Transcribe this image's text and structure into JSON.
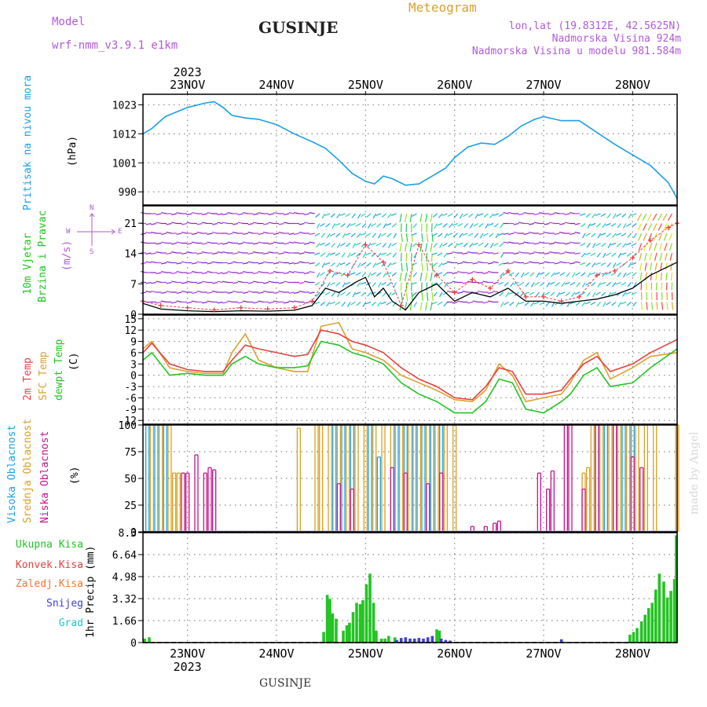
{
  "header": {
    "model_label": "Model",
    "model_name": "wrf-nmm_v3.9.1 e1km",
    "station": "GUSINJE",
    "product": "Meteogram",
    "coords": "lon,lat (19.8312E, 42.5625N)",
    "altitude": "Nadmorska Visina 924m",
    "model_altitude": "Nadmorska Visina u modelu 981.584m",
    "footer_station": "GUSINJE",
    "watermark": "made by Angel"
  },
  "colors": {
    "purple": "#b05ad8",
    "pressure": "#1aa0e8",
    "green": "#22c422",
    "t2m": "#e84040",
    "sfc": "#dca030",
    "low": "#c8148c",
    "mid": "#dca020",
    "high": "#1aa0e8",
    "orange": "#f07830",
    "blue": "#4040d0",
    "cyan": "#20c8c8"
  },
  "time_axis": {
    "year": "2023",
    "days": [
      "23NOV",
      "24NOV",
      "25NOV",
      "26NOV",
      "27NOV",
      "28NOV"
    ]
  },
  "panel_labels": {
    "pressure": {
      "name": "Pritisak na nivou mora",
      "unit": "(hPa)"
    },
    "wind": {
      "line1": "10m Vjetar",
      "line2": "Brzina i Pravac",
      "unit": "(m/s)",
      "compass_n": "N",
      "compass_s": "S",
      "compass_e": "E",
      "compass_w": "W"
    },
    "temp": {
      "t2m": "2m Temp",
      "sfc": "SFC Temp",
      "dewpt": "dewpt Temp",
      "unit": "(C)"
    },
    "cloud": {
      "high": "Visoka Oblacnost",
      "mid": "Srednja Oblacnost",
      "low": "Niska Oblacnost",
      "unit": "(%)"
    },
    "precip": {
      "unit": "1hr Precip (mm)",
      "legend": [
        "Ukupna Kisa",
        "Konvek.Kisa",
        "Zaledj.Kisa",
        "Snijeg",
        "Grad"
      ]
    }
  },
  "chart_data": [
    {
      "type": "line",
      "panel": "pressure",
      "title": "Pritisak na nivou mora",
      "ylabel": "(hPa)",
      "ylim": [
        985,
        1027
      ],
      "yticks": [
        990,
        1001,
        1012,
        1023
      ],
      "x_unit": "day of Nov 2023",
      "series": [
        {
          "name": "Pritisak na nivou mora",
          "x": [
            22.5,
            22.6,
            22.75,
            23.0,
            23.2,
            23.3,
            23.4,
            23.5,
            23.65,
            23.8,
            24.0,
            24.2,
            24.4,
            24.55,
            24.7,
            24.85,
            25.0,
            25.1,
            25.2,
            25.3,
            25.45,
            25.6,
            25.75,
            25.9,
            26.0,
            26.15,
            26.3,
            26.45,
            26.6,
            26.75,
            26.9,
            27.0,
            27.2,
            27.4,
            27.6,
            27.8,
            28.0,
            28.2,
            28.4,
            28.5
          ],
          "values": [
            1012,
            1014,
            1018.5,
            1022,
            1023.7,
            1024.2,
            1022,
            1019,
            1018,
            1017.5,
            1015.5,
            1012,
            1009,
            1006.5,
            1002,
            997,
            994,
            993,
            996,
            995,
            992.5,
            993,
            996,
            999,
            1003,
            1007,
            1008.5,
            1008,
            1011,
            1015,
            1017.5,
            1018.5,
            1017,
            1017,
            1012.5,
            1008,
            1004,
            1000,
            993.5,
            987.5
          ]
        }
      ]
    },
    {
      "type": "line",
      "panel": "wind",
      "title": "10m Vjetar Brzina i Pravac",
      "ylabel": "(m/s)",
      "ylim": [
        0,
        25
      ],
      "yticks": [
        0,
        7,
        14,
        21
      ],
      "series": [
        {
          "name": "10m Vjetar",
          "x": [
            22.5,
            22.7,
            23.0,
            23.3,
            23.6,
            23.9,
            24.2,
            24.4,
            24.55,
            24.7,
            24.9,
            25.0,
            25.1,
            25.2,
            25.3,
            25.45,
            25.6,
            25.8,
            26.0,
            26.2,
            26.4,
            26.6,
            26.8,
            27.0,
            27.2,
            27.4,
            27.6,
            27.8,
            28.0,
            28.2,
            28.4,
            28.5
          ],
          "values": [
            2.5,
            1.2,
            0.8,
            0.6,
            0.8,
            0.7,
            0.9,
            2,
            6,
            5,
            7.5,
            8.5,
            4,
            6,
            3,
            1,
            5,
            7,
            3,
            5,
            4,
            6,
            3,
            3,
            2.5,
            3,
            3.5,
            4.5,
            6,
            9,
            11,
            12
          ]
        },
        {
          "name": "gust",
          "x": [
            22.5,
            22.7,
            23.0,
            23.3,
            23.6,
            23.9,
            24.2,
            24.4,
            24.6,
            24.8,
            25.0,
            25.2,
            25.4,
            25.6,
            25.8,
            26.0,
            26.2,
            26.4,
            26.6,
            26.8,
            27.0,
            27.2,
            27.4,
            27.6,
            27.8,
            28.0,
            28.2,
            28.4,
            28.5
          ],
          "values": [
            3,
            2,
            1.5,
            1,
            1.5,
            1.2,
            1.5,
            3,
            10,
            9,
            16,
            12,
            2,
            16,
            9,
            5,
            8,
            6,
            10,
            4,
            4,
            3,
            4,
            9,
            10,
            13,
            17,
            20,
            21
          ]
        }
      ]
    },
    {
      "type": "line",
      "panel": "temperature",
      "title": "2m Temp / SFC Temp / dewpt Temp",
      "ylabel": "(C)",
      "ylim": [
        -13,
        16
      ],
      "yticks": [
        -12,
        -9,
        -6,
        -3,
        0,
        3,
        6,
        9,
        12,
        15
      ],
      "series": [
        {
          "name": "2m Temp",
          "x": [
            22.5,
            22.6,
            22.8,
            23.0,
            23.2,
            23.4,
            23.5,
            23.65,
            23.8,
            24.0,
            24.2,
            24.35,
            24.5,
            24.7,
            24.85,
            25.0,
            25.2,
            25.4,
            25.6,
            25.8,
            26.0,
            26.2,
            26.35,
            26.5,
            26.65,
            26.8,
            27.0,
            27.2,
            27.3,
            27.45,
            27.6,
            27.75,
            28.0,
            28.2,
            28.5
          ],
          "values": [
            6,
            8.5,
            3,
            1.5,
            1,
            1,
            4,
            8,
            7,
            6,
            5,
            5.5,
            12,
            11,
            9,
            8,
            6,
            2,
            -1,
            -3,
            -6,
            -6.5,
            -3,
            2,
            1,
            -5,
            -5,
            -4,
            -1,
            3,
            5,
            1,
            3,
            6,
            9.5
          ]
        },
        {
          "name": "SFC Temp",
          "x": [
            22.5,
            22.6,
            22.8,
            23.0,
            23.2,
            23.4,
            23.5,
            23.65,
            23.8,
            24.0,
            24.2,
            24.35,
            24.5,
            24.7,
            24.85,
            25.0,
            25.2,
            25.4,
            25.6,
            25.8,
            26.0,
            26.2,
            26.35,
            26.5,
            26.65,
            26.8,
            27.0,
            27.2,
            27.3,
            27.45,
            27.6,
            27.75,
            28.0,
            28.2,
            28.5
          ],
          "values": [
            7,
            9,
            2,
            1,
            0.5,
            0.5,
            6,
            11,
            4,
            2,
            1,
            1,
            13,
            14,
            7,
            6,
            4,
            0,
            -2,
            -4,
            -6.5,
            -7,
            -4,
            3,
            0,
            -7,
            -6,
            -5,
            -2,
            4,
            6,
            -1,
            2,
            5,
            6
          ]
        },
        {
          "name": "dewpt Temp",
          "x": [
            22.5,
            22.6,
            22.8,
            23.0,
            23.2,
            23.4,
            23.5,
            23.65,
            23.8,
            24.0,
            24.2,
            24.35,
            24.5,
            24.7,
            24.85,
            25.0,
            25.2,
            25.4,
            25.6,
            25.8,
            26.0,
            26.2,
            26.35,
            26.5,
            26.65,
            26.8,
            27.0,
            27.2,
            27.3,
            27.45,
            27.6,
            27.75,
            28.0,
            28.2,
            28.5
          ],
          "values": [
            4,
            6,
            0,
            0.5,
            0,
            0,
            3,
            5,
            3,
            2,
            2,
            2.5,
            9,
            8,
            6,
            5,
            3,
            -2,
            -5,
            -7,
            -10,
            -10,
            -7,
            -1,
            -2,
            -9,
            -10,
            -7,
            -5,
            0,
            2,
            -3,
            -2,
            2,
            7
          ]
        }
      ]
    },
    {
      "type": "bar",
      "panel": "cloud",
      "title": "Visoka / Srednja / Niska Oblacnost",
      "ylabel": "(%)",
      "ylim": [
        0,
        100
      ],
      "yticks": [
        0,
        25,
        50,
        75,
        100
      ],
      "series": [
        {
          "name": "Visoka Oblacnost",
          "x": [
            22.55,
            22.65,
            22.75,
            24.65,
            24.75,
            24.85,
            25.05,
            25.15,
            25.35,
            25.45,
            25.55,
            25.65,
            25.75,
            25.85,
            27.6,
            27.7,
            27.8,
            27.9,
            28.0
          ],
          "values": [
            100,
            100,
            100,
            100,
            100,
            100,
            100,
            70,
            100,
            100,
            100,
            100,
            100,
            100,
            100,
            100,
            100,
            100,
            100
          ]
        },
        {
          "name": "Srednja Oblacnost",
          "x": [
            22.6,
            22.7,
            22.8,
            22.85,
            22.9,
            24.25,
            24.45,
            24.5,
            24.6,
            24.7,
            24.8,
            24.9,
            25.0,
            25.1,
            25.2,
            25.3,
            25.4,
            25.5,
            25.6,
            25.7,
            25.8,
            25.9,
            26.0,
            27.45,
            27.5,
            27.55,
            27.65,
            27.75,
            27.85,
            27.95,
            28.05,
            28.15,
            28.25,
            28.5
          ],
          "values": [
            100,
            100,
            100,
            55,
            55,
            97,
            100,
            100,
            100,
            100,
            100,
            100,
            100,
            100,
            100,
            100,
            100,
            100,
            100,
            100,
            100,
            100,
            100,
            55,
            60,
            100,
            100,
            100,
            100,
            100,
            100,
            100,
            100,
            100
          ]
        },
        {
          "name": "Niska Oblacnost",
          "x": [
            22.95,
            23.0,
            23.1,
            23.2,
            23.25,
            23.3,
            24.7,
            24.85,
            25.3,
            25.45,
            25.7,
            25.85,
            26.2,
            26.35,
            26.45,
            26.5,
            26.95,
            27.05,
            27.1,
            27.25,
            27.3,
            27.45,
            27.6,
            27.8,
            28.0,
            28.1
          ],
          "values": [
            55,
            55,
            72,
            55,
            60,
            58,
            45,
            40,
            60,
            55,
            45,
            55,
            5,
            5,
            8,
            10,
            55,
            40,
            57,
            100,
            100,
            40,
            100,
            100,
            70,
            60
          ]
        }
      ]
    },
    {
      "type": "bar",
      "panel": "precip",
      "title": "1hr Precip",
      "ylabel": "1hr Precip (mm)",
      "ylim": [
        0,
        8.3
      ],
      "yticks": [
        0,
        1.66,
        3.32,
        4.98,
        6.64,
        8.3
      ],
      "series": [
        {
          "name": "Ukupna Kisa",
          "x": [
            22.52,
            22.57,
            24.53,
            24.57,
            24.6,
            24.63,
            24.67,
            24.75,
            24.79,
            24.82,
            24.86,
            24.9,
            24.94,
            24.97,
            25.01,
            25.05,
            25.09,
            25.12,
            25.18,
            25.22,
            25.26,
            25.33,
            25.8,
            25.83,
            27.97,
            28.01,
            28.05,
            28.1,
            28.14,
            28.18,
            28.22,
            28.26,
            28.3,
            28.35,
            28.39,
            28.43,
            28.47,
            28.49
          ],
          "values": [
            0.3,
            0.4,
            0.8,
            3.6,
            3.3,
            2.2,
            1.8,
            0.9,
            1.3,
            1.5,
            2.3,
            3.0,
            2.9,
            3.2,
            4.4,
            5.2,
            3.0,
            0.9,
            0.3,
            0.3,
            0.5,
            0.4,
            1.0,
            0.9,
            0.6,
            0.8,
            1.1,
            1.6,
            2.1,
            2.6,
            3.0,
            4.0,
            5.2,
            4.6,
            3.4,
            3.9,
            4.8,
            8.1
          ]
        },
        {
          "name": "Snijeg",
          "x": [
            25.35,
            25.4,
            25.45,
            25.5,
            25.55,
            25.6,
            25.65,
            25.7,
            25.75,
            25.85,
            25.9,
            25.95,
            27.2
          ],
          "values": [
            0.2,
            0.35,
            0.4,
            0.3,
            0.3,
            0.35,
            0.3,
            0.4,
            0.5,
            0.3,
            0.2,
            0.15,
            0.25
          ]
        }
      ]
    }
  ]
}
